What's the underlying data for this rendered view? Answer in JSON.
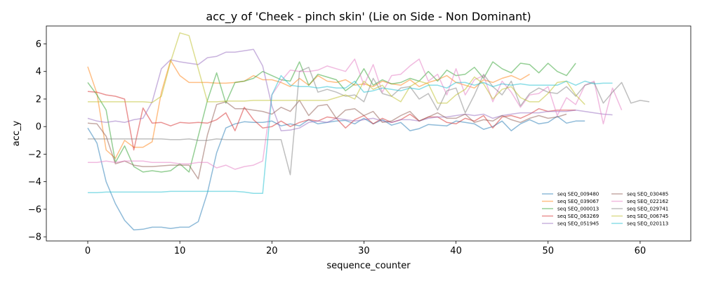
{
  "chart_data": {
    "type": "line",
    "title": "acc_y of 'Cheek - pinch skin' (Lie on Side - Non Dominant)",
    "xlabel": "sequence_counter",
    "ylabel": "acc_y",
    "xlim": [
      -4.5,
      65.5
    ],
    "ylim": [
      -8.3,
      7.3
    ],
    "xticks": [
      0,
      10,
      20,
      30,
      40,
      50,
      60
    ],
    "yticks": [
      -8,
      -6,
      -4,
      -2,
      0,
      2,
      4,
      6
    ],
    "grid": false,
    "legend": {
      "position": "bottom-right",
      "columns": 2
    },
    "series": [
      {
        "name": "seq SEQ_009480",
        "color": "#1f77b4",
        "values": [
          -0.1,
          -1.2,
          -4.0,
          -5.6,
          -6.8,
          -7.5,
          -7.45,
          -7.3,
          -7.3,
          -7.4,
          -7.3,
          -7.3,
          -6.9,
          -4.8,
          -1.9,
          -0.1,
          0.2,
          0.35,
          0.3,
          0.3,
          0.4,
          0.05,
          0.2,
          0.05,
          0.5,
          0.2,
          0.3,
          0.4,
          0.45,
          0.2,
          0.6,
          0.2,
          0.5,
          0.1,
          0.3,
          -0.3,
          -0.15,
          0.15,
          0.1,
          0.05,
          0.4,
          0.3,
          0.2,
          -0.2,
          0.0,
          0.4,
          -0.3,
          0.2,
          0.5,
          0.2,
          0.3,
          0.75,
          0.25,
          0.4,
          0.4
        ]
      },
      {
        "name": "seq SEQ_039067",
        "color": "#ff7f0e",
        "values": [
          4.35,
          2.4,
          -1.7,
          -2.3,
          -1.0,
          -1.5,
          -1.5,
          -1.1,
          2.5,
          4.8,
          3.7,
          3.2,
          3.2,
          3.2,
          3.15,
          3.15,
          3.2,
          3.3,
          3.7,
          3.4,
          3.4,
          3.2,
          2.9,
          3.5,
          3.0,
          3.7,
          3.3,
          3.2,
          3.4,
          3.0,
          3.1,
          2.9,
          3.3,
          3.1,
          3.0,
          3.4,
          2.9,
          3.2,
          3.4,
          3.7,
          3.2,
          3.0,
          2.8,
          3.4,
          3.2,
          3.5,
          3.7,
          3.4,
          3.8
        ]
      },
      {
        "name": "seq SEQ_000013",
        "color": "#2ca02c",
        "values": [
          3.2,
          2.3,
          1.2,
          -2.6,
          -1.4,
          -2.9,
          -3.3,
          -3.2,
          -3.3,
          -3.2,
          -2.7,
          -3.3,
          -0.7,
          1.9,
          3.9,
          1.7,
          3.2,
          3.3,
          3.5,
          4.0,
          3.7,
          3.4,
          3.3,
          4.7,
          3.0,
          3.8,
          3.6,
          3.4,
          2.6,
          3.1,
          4.2,
          3.0,
          3.4,
          3.1,
          3.2,
          3.5,
          3.3,
          4.0,
          3.3,
          4.1,
          3.7,
          3.8,
          4.3,
          3.5,
          4.7,
          4.2,
          3.9,
          4.6,
          4.5,
          3.9,
          4.6,
          4.0,
          3.7,
          4.6
        ]
      },
      {
        "name": "seq SEQ_063269",
        "color": "#d62728",
        "values": [
          2.55,
          2.5,
          2.3,
          2.2,
          2.0,
          -1.7,
          1.35,
          0.25,
          0.3,
          0.05,
          0.3,
          0.25,
          0.3,
          0.25,
          0.5,
          1.0,
          -0.3,
          1.4,
          0.5,
          -0.1,
          0.0,
          0.4,
          0.0,
          0.3,
          0.5,
          0.4,
          0.7,
          0.6,
          -0.1,
          0.5,
          0.8,
          0.2,
          0.6,
          0.3,
          0.5,
          0.9,
          0.4,
          0.7,
          0.7,
          0.3,
          0.2,
          0.6,
          0.4,
          0.8,
          -0.1,
          0.7,
          0.8,
          0.6,
          0.9,
          1.3,
          1.1,
          1.2,
          1.2,
          1.2
        ]
      },
      {
        "name": "seq SEQ_051945",
        "color": "#9467bd",
        "values": [
          0.6,
          0.4,
          0.3,
          0.4,
          0.3,
          0.5,
          0.6,
          1.8,
          4.2,
          4.85,
          4.7,
          4.6,
          4.5,
          5.0,
          5.1,
          5.4,
          5.4,
          5.5,
          5.6,
          4.4,
          1.5,
          -0.3,
          -0.25,
          -0.1,
          0.3,
          0.4,
          0.3,
          0.6,
          0.5,
          0.4,
          0.5,
          0.6,
          0.4,
          0.3,
          0.5,
          0.5,
          0.4,
          0.6,
          0.7,
          0.7,
          0.8,
          0.9,
          0.8,
          0.9,
          0.6,
          0.8,
          0.9,
          1.0,
          1.0,
          1.0,
          1.1,
          1.1,
          1.1,
          1.2,
          1.1,
          1.0,
          0.9,
          0.85
        ]
      },
      {
        "name": "seq SEQ_030485",
        "color": "#8c564b",
        "values": [
          0.25,
          0.2,
          -0.7,
          -2.7,
          -2.5,
          -2.8,
          -2.9,
          -2.9,
          -2.85,
          -2.8,
          -2.8,
          -2.8,
          -3.8,
          -0.6,
          1.6,
          1.8,
          1.3,
          1.3,
          1.2,
          1.1,
          0.9,
          1.4,
          1.1,
          1.9,
          0.8,
          1.5,
          1.6,
          0.6,
          1.2,
          1.3,
          0.8,
          1.1,
          0.3,
          0.4,
          0.8,
          1.1,
          0.4,
          0.7,
          1.0,
          0.6,
          0.6,
          0.9,
          0.3,
          0.5,
          0.4,
          0.8,
          0.5,
          0.3,
          0.6,
          0.8,
          0.6,
          0.7,
          0.9
        ]
      },
      {
        "name": "seq SEQ_022162",
        "color": "#e377c2",
        "values": [
          -2.6,
          -2.6,
          -2.5,
          -2.6,
          -2.5,
          -2.5,
          -2.5,
          -2.6,
          -2.6,
          -2.6,
          -2.7,
          -2.7,
          -2.6,
          -2.6,
          -3.0,
          -2.8,
          -3.1,
          -2.9,
          -2.8,
          -2.5,
          2.3,
          3.3,
          4.1,
          4.0,
          4.0,
          4.1,
          4.4,
          4.2,
          4.0,
          4.9,
          3.0,
          4.5,
          2.5,
          3.7,
          3.8,
          4.4,
          4.9,
          3.3,
          3.8,
          2.3,
          4.2,
          2.3,
          3.4,
          3.7,
          1.8,
          3.3,
          2.5,
          1.4,
          2.3,
          2.4,
          2.9,
          0.8,
          2.1,
          1.6,
          3.0,
          3.3,
          0.2,
          2.8,
          1.2
        ]
      },
      {
        "name": "seq SEQ_029741",
        "color": "#7f7f7f",
        "values": [
          -0.9,
          -0.9,
          -0.9,
          -0.9,
          -0.9,
          -0.9,
          -0.9,
          -0.9,
          -0.9,
          -0.95,
          -0.95,
          -0.9,
          -1.0,
          -1.0,
          -0.9,
          -0.95,
          -0.95,
          -0.95,
          -0.95,
          -0.95,
          -0.95,
          -0.95,
          -3.5,
          4.0,
          4.3,
          2.5,
          2.7,
          2.5,
          2.2,
          2.3,
          1.8,
          3.5,
          2.4,
          2.2,
          2.8,
          2.9,
          2.0,
          2.4,
          1.2,
          2.6,
          2.8,
          1.0,
          2.3,
          3.8,
          2.9,
          2.3,
          3.3,
          1.5,
          2.4,
          2.8,
          2.5,
          2.4,
          2.9,
          2.2,
          3.0,
          3.2,
          1.7,
          2.5,
          3.2,
          1.7,
          1.9,
          1.8
        ]
      },
      {
        "name": "seq SEQ_006745",
        "color": "#bcbd22",
        "values": [
          1.8,
          1.8,
          1.8,
          1.8,
          1.8,
          1.8,
          1.8,
          1.75,
          2.2,
          4.7,
          6.8,
          6.6,
          4.2,
          1.8,
          1.8,
          1.85,
          1.85,
          1.85,
          1.9,
          1.9,
          1.9,
          1.9,
          1.9,
          1.9,
          1.9,
          1.9,
          1.9,
          2.1,
          2.3,
          2.0,
          3.3,
          2.7,
          3.0,
          2.2,
          1.8,
          2.9,
          3.3,
          3.1,
          1.7,
          1.7,
          2.3,
          2.7,
          3.6,
          3.1,
          2.0,
          2.7,
          2.9,
          2.1,
          1.8,
          1.8,
          2.4,
          3.2,
          3.3,
          2.3,
          1.6
        ]
      },
      {
        "name": "seq SEQ_020113",
        "color": "#17becf",
        "values": [
          -4.8,
          -4.8,
          -4.75,
          -4.75,
          -4.75,
          -4.75,
          -4.75,
          -4.75,
          -4.75,
          -4.7,
          -4.7,
          -4.7,
          -4.7,
          -4.7,
          -4.7,
          -4.7,
          -4.7,
          -4.75,
          -4.85,
          -4.85,
          2.3,
          3.7,
          3.0,
          2.9,
          2.9,
          2.8,
          2.9,
          2.8,
          2.8,
          3.3,
          2.5,
          2.6,
          2.8,
          2.7,
          2.6,
          2.8,
          2.7,
          3.0,
          3.0,
          2.8,
          3.2,
          3.2,
          3.0,
          3.2,
          2.9,
          3.1,
          3.0,
          3.1,
          3.0,
          3.0,
          3.0,
          3.0,
          3.3,
          3.0,
          3.3,
          3.1,
          3.15,
          3.15
        ]
      }
    ]
  }
}
